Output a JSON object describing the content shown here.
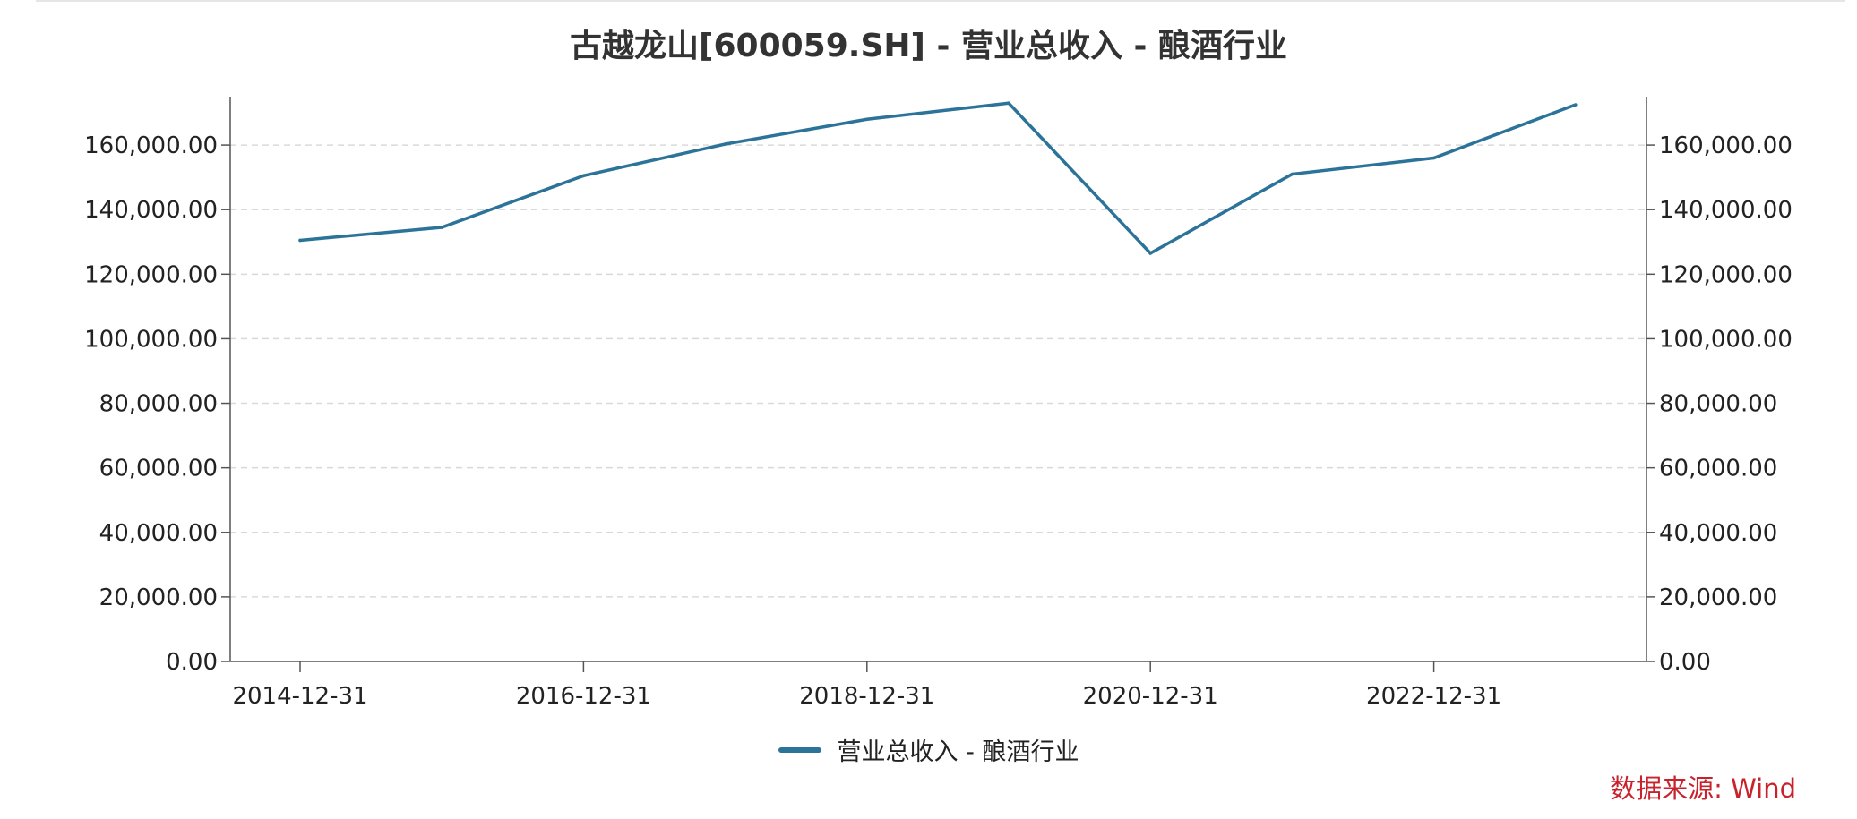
{
  "title": "古越龙山[600059.SH] - 营业总收入 - 酿酒行业",
  "source_note": "数据来源: Wind",
  "colors": {
    "series": "#2b7399",
    "axis": "#555555",
    "grid": "#d9d9d9",
    "source": "#c8232c"
  },
  "chart_data": {
    "type": "line",
    "title": "古越龙山[600059.SH] - 营业总收入 - 酿酒行业",
    "x": [
      "2014-12-31",
      "2015-12-31",
      "2016-12-31",
      "2017-12-31",
      "2018-12-31",
      "2019-12-31",
      "2020-12-31",
      "2021-12-31",
      "2022-12-31",
      "2023-12-31"
    ],
    "x_tick_labels": [
      "2014-12-31",
      "2016-12-31",
      "2018-12-31",
      "2020-12-31",
      "2022-12-31"
    ],
    "series": [
      {
        "name": "营业总收入 - 酿酒行业",
        "values": [
          130500,
          134500,
          150500,
          160300,
          168000,
          173000,
          126500,
          151000,
          156000,
          172500
        ]
      }
    ],
    "ylim": [
      0,
      175000
    ],
    "y_ticks": [
      0,
      20000,
      40000,
      60000,
      80000,
      100000,
      120000,
      140000,
      160000
    ],
    "y_tick_labels": [
      "0.00",
      "20,000.00",
      "40,000.00",
      "60,000.00",
      "80,000.00",
      "100,000.00",
      "120,000.00",
      "140,000.00",
      "160,000.00"
    ],
    "dual_y_axis": true,
    "grid": true,
    "legend_position": "bottom-center",
    "xlabel": "",
    "ylabel": ""
  }
}
